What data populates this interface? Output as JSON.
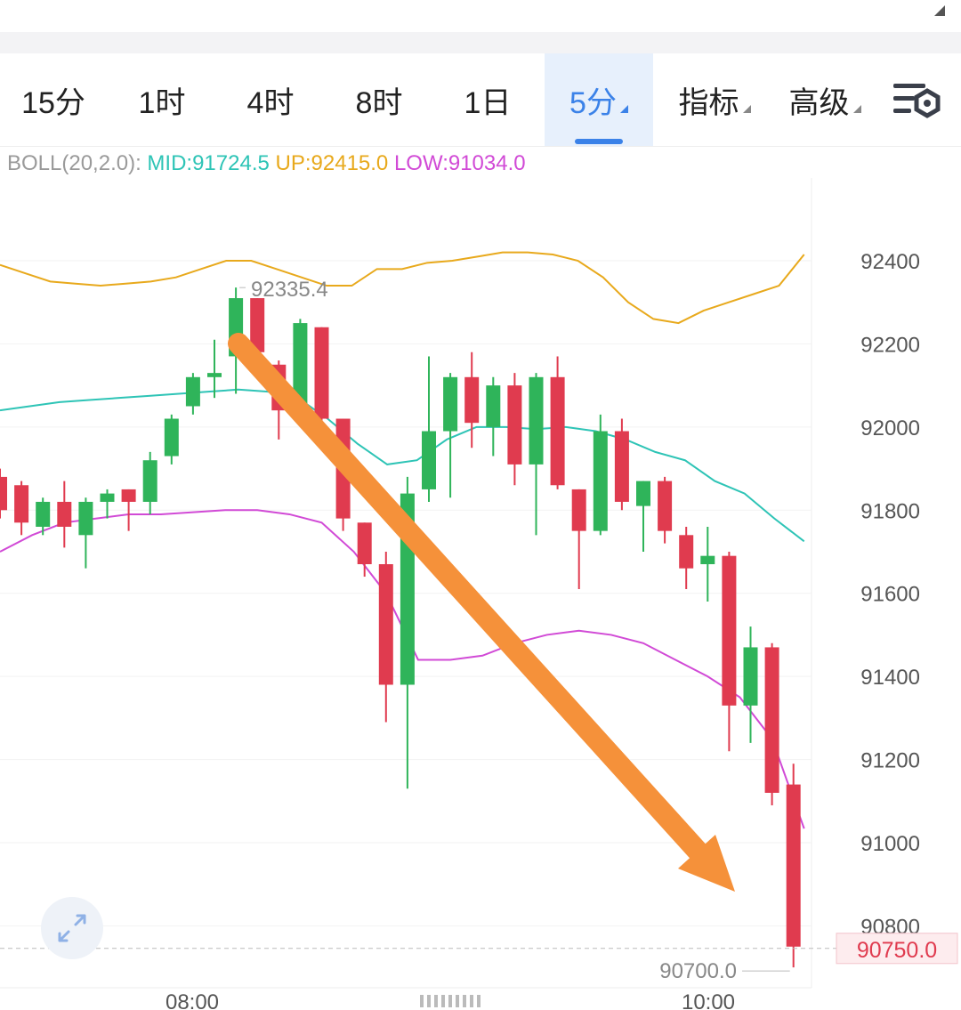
{
  "tabs": [
    {
      "label": "15分",
      "active": false
    },
    {
      "label": "1时",
      "active": false
    },
    {
      "label": "4时",
      "active": false
    },
    {
      "label": "8时",
      "active": false
    },
    {
      "label": "1日",
      "active": false
    },
    {
      "label": "5分",
      "active": true
    },
    {
      "label": "指标",
      "active": false
    },
    {
      "label": "高级",
      "active": false
    }
  ],
  "settings_icon": "chart-settings-icon",
  "boll": {
    "name": "BOLL(20,2.0):",
    "mid": "MID:91724.5",
    "up": "UP:92415.0",
    "low": "LOW:91034.0"
  },
  "colors": {
    "up_candle": "#2fb45a",
    "down_candle": "#e03b4f",
    "mid_line": "#2ec4b6",
    "up_line": "#e8a91c",
    "low_line": "#d14ad6",
    "arrow": "#f5913a",
    "accent": "#3b82e8"
  },
  "chart_data": {
    "type": "candlestick",
    "ylim": [
      90650,
      92650
    ],
    "y_ticks": [
      "92400",
      "92200",
      "92000",
      "91800",
      "91600",
      "91400",
      "91200",
      "91000",
      "90800"
    ],
    "x_ticks": [
      "08:00",
      "10:00"
    ],
    "high_label": "92335.4",
    "low_label": "90700.0",
    "last_price": "90750.0",
    "candles": [
      {
        "o": 91880,
        "c": 91800,
        "h": 91900,
        "l": 91780
      },
      {
        "o": 91860,
        "c": 91770,
        "h": 91870,
        "l": 91740
      },
      {
        "o": 91760,
        "c": 91820,
        "h": 91830,
        "l": 91740
      },
      {
        "o": 91820,
        "c": 91760,
        "h": 91870,
        "l": 91710
      },
      {
        "o": 91740,
        "c": 91820,
        "h": 91830,
        "l": 91660
      },
      {
        "o": 91820,
        "c": 91840,
        "h": 91850,
        "l": 91780
      },
      {
        "o": 91850,
        "c": 91820,
        "h": 91850,
        "l": 91750
      },
      {
        "o": 91820,
        "c": 91920,
        "h": 91940,
        "l": 91790
      },
      {
        "o": 91930,
        "c": 92020,
        "h": 92030,
        "l": 91910
      },
      {
        "o": 92050,
        "c": 92120,
        "h": 92130,
        "l": 92030
      },
      {
        "o": 92120,
        "c": 92130,
        "h": 92210,
        "l": 92070
      },
      {
        "o": 92170,
        "c": 92310,
        "h": 92335.4,
        "l": 92080
      },
      {
        "o": 92310,
        "c": 92180,
        "h": 92310,
        "l": 92160
      },
      {
        "o": 92150,
        "c": 92040,
        "h": 92160,
        "l": 91970
      },
      {
        "o": 92040,
        "c": 92250,
        "h": 92260,
        "l": 92030
      },
      {
        "o": 92240,
        "c": 92020,
        "h": 92240,
        "l": 91990
      },
      {
        "o": 92020,
        "c": 91780,
        "h": 92020,
        "l": 91750
      },
      {
        "o": 91770,
        "c": 91670,
        "h": 91770,
        "l": 91640
      },
      {
        "o": 91670,
        "c": 91380,
        "h": 91700,
        "l": 91290
      },
      {
        "o": 91380,
        "c": 91840,
        "h": 91880,
        "l": 91130
      },
      {
        "o": 91850,
        "c": 91990,
        "h": 92170,
        "l": 91820
      },
      {
        "o": 91990,
        "c": 92120,
        "h": 92130,
        "l": 91830
      },
      {
        "o": 92120,
        "c": 92010,
        "h": 92180,
        "l": 91950
      },
      {
        "o": 92000,
        "c": 92100,
        "h": 92120,
        "l": 91930
      },
      {
        "o": 92100,
        "c": 91910,
        "h": 92130,
        "l": 91860
      },
      {
        "o": 91910,
        "c": 92120,
        "h": 92130,
        "l": 91740
      },
      {
        "o": 92120,
        "c": 91860,
        "h": 92170,
        "l": 91850
      },
      {
        "o": 91850,
        "c": 91750,
        "h": 91850,
        "l": 91610
      },
      {
        "o": 91750,
        "c": 91990,
        "h": 92030,
        "l": 91740
      },
      {
        "o": 91990,
        "c": 91820,
        "h": 92020,
        "l": 91800
      },
      {
        "o": 91810,
        "c": 91870,
        "h": 91870,
        "l": 91700
      },
      {
        "o": 91870,
        "c": 91750,
        "h": 91880,
        "l": 91720
      },
      {
        "o": 91740,
        "c": 91660,
        "h": 91760,
        "l": 91610
      },
      {
        "o": 91670,
        "c": 91690,
        "h": 91760,
        "l": 91580
      },
      {
        "o": 91690,
        "c": 91330,
        "h": 91700,
        "l": 91220
      },
      {
        "o": 91330,
        "c": 91470,
        "h": 91520,
        "l": 91240
      },
      {
        "o": 91470,
        "c": 91120,
        "h": 91480,
        "l": 91090
      },
      {
        "o": 91140,
        "c": 90750,
        "h": 91190,
        "l": 90700
      }
    ],
    "boll_up": [
      92390,
      92370,
      92350,
      92345,
      92340,
      92345,
      92350,
      92360,
      92380,
      92400,
      92400,
      92380,
      92360,
      92340,
      92340,
      92380,
      92380,
      92395,
      92400,
      92410,
      92420,
      92420,
      92415,
      92400,
      92360,
      92300,
      92260,
      92250,
      92280,
      92300,
      92320,
      92340,
      92415
    ],
    "boll_mid": [
      92040,
      92050,
      92060,
      92065,
      92070,
      92075,
      92080,
      92085,
      92090,
      92085,
      92070,
      92020,
      91960,
      91910,
      91920,
      91970,
      92000,
      92000,
      91995,
      92000,
      91990,
      91970,
      91940,
      91920,
      91870,
      91840,
      91780,
      91725
    ],
    "boll_low": [
      91700,
      91740,
      91770,
      91780,
      91790,
      91790,
      91795,
      91800,
      91800,
      91790,
      91770,
      91700,
      91600,
      91440,
      91440,
      91450,
      91480,
      91500,
      91510,
      91500,
      91480,
      91440,
      91400,
      91350,
      91250,
      91034
    ]
  },
  "annotation": "arrow-down-trend"
}
